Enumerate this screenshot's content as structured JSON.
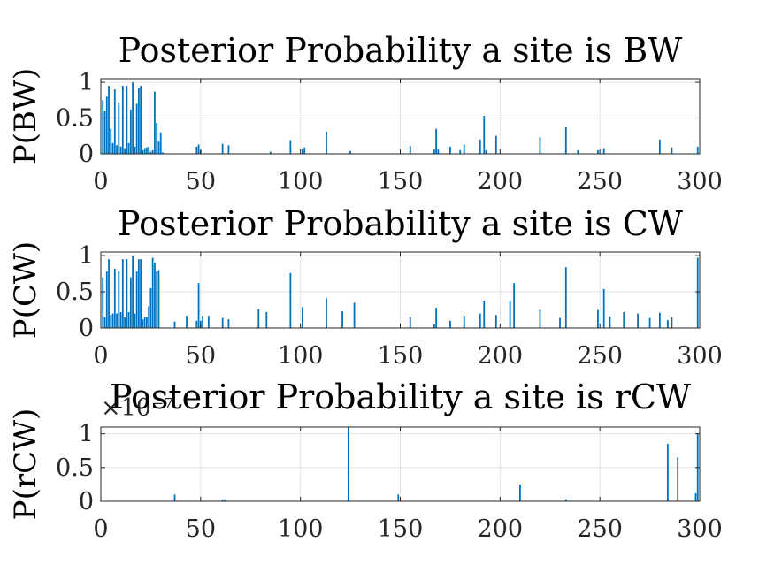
{
  "chart_data": [
    {
      "type": "bar",
      "title": "Posterior Probability a site is BW",
      "xlabel": "",
      "ylabel": "P(BW)",
      "xlim": [
        0,
        300
      ],
      "ylim": [
        0,
        1.05
      ],
      "xticks": [
        0,
        50,
        100,
        150,
        200,
        250,
        300
      ],
      "yticks": [
        0,
        0.5,
        1
      ],
      "ytick_labels": [
        "0",
        "0.5",
        "1"
      ],
      "y_multiplier": "",
      "grid": true,
      "bar_color": "#0072BD",
      "points": [
        [
          1,
          0.75
        ],
        [
          2,
          0.6
        ],
        [
          3,
          0.8
        ],
        [
          4,
          0.95
        ],
        [
          5,
          0.35
        ],
        [
          6,
          0.15
        ],
        [
          7,
          0.9
        ],
        [
          8,
          0.12
        ],
        [
          9,
          0.72
        ],
        [
          10,
          0.1
        ],
        [
          11,
          0.95
        ],
        [
          12,
          0.08
        ],
        [
          13,
          0.95
        ],
        [
          14,
          0.15
        ],
        [
          15,
          0.62
        ],
        [
          16,
          1.0
        ],
        [
          17,
          0.1
        ],
        [
          18,
          0.7
        ],
        [
          19,
          0.92
        ],
        [
          20,
          0.95
        ],
        [
          21,
          0.05
        ],
        [
          22,
          0.08
        ],
        [
          23,
          0.09
        ],
        [
          24,
          0.1
        ],
        [
          25,
          0.03
        ],
        [
          26,
          0.05
        ],
        [
          27,
          0.87
        ],
        [
          28,
          0.43
        ],
        [
          29,
          0.17
        ],
        [
          30,
          0.3
        ],
        [
          31,
          0.02
        ],
        [
          48,
          0.1
        ],
        [
          49,
          0.13
        ],
        [
          50,
          0.05
        ],
        [
          61,
          0.14
        ],
        [
          64,
          0.12
        ],
        [
          85,
          0.03
        ],
        [
          95,
          0.19
        ],
        [
          101,
          0.07
        ],
        [
          102,
          0.09
        ],
        [
          113,
          0.31
        ],
        [
          125,
          0.04
        ],
        [
          155,
          0.11
        ],
        [
          167,
          0.06
        ],
        [
          168,
          0.35
        ],
        [
          169,
          0.06
        ],
        [
          175,
          0.1
        ],
        [
          180,
          0.05
        ],
        [
          182,
          0.13
        ],
        [
          190,
          0.2
        ],
        [
          192,
          0.53
        ],
        [
          193,
          0.05
        ],
        [
          198,
          0.25
        ],
        [
          220,
          0.23
        ],
        [
          233,
          0.37
        ],
        [
          239,
          0.05
        ],
        [
          249,
          0.05
        ],
        [
          252,
          0.08
        ],
        [
          280,
          0.2
        ],
        [
          286,
          0.09
        ],
        [
          299,
          0.1
        ]
      ]
    },
    {
      "type": "bar",
      "title": "Posterior Probability a site is CW",
      "xlabel": "",
      "ylabel": "P(CW)",
      "xlim": [
        0,
        300
      ],
      "ylim": [
        0,
        1.05
      ],
      "xticks": [
        0,
        50,
        100,
        150,
        200,
        250,
        300
      ],
      "yticks": [
        0,
        0.5,
        1
      ],
      "ytick_labels": [
        "0",
        "0.5",
        "1"
      ],
      "y_multiplier": "",
      "grid": true,
      "bar_color": "#0072BD",
      "points": [
        [
          1,
          0.7
        ],
        [
          2,
          0.15
        ],
        [
          3,
          0.78
        ],
        [
          4,
          0.95
        ],
        [
          5,
          0.18
        ],
        [
          6,
          0.2
        ],
        [
          7,
          0.82
        ],
        [
          8,
          0.2
        ],
        [
          9,
          0.78
        ],
        [
          10,
          0.22
        ],
        [
          11,
          0.95
        ],
        [
          12,
          0.15
        ],
        [
          13,
          0.95
        ],
        [
          14,
          0.22
        ],
        [
          15,
          0.7
        ],
        [
          16,
          1.0
        ],
        [
          17,
          0.2
        ],
        [
          18,
          0.78
        ],
        [
          19,
          0.95
        ],
        [
          20,
          0.95
        ],
        [
          21,
          0.12
        ],
        [
          22,
          0.15
        ],
        [
          23,
          0.15
        ],
        [
          24,
          0.3
        ],
        [
          25,
          0.55
        ],
        [
          26,
          0.97
        ],
        [
          27,
          0.9
        ],
        [
          28,
          0.78
        ],
        [
          29,
          0.8
        ],
        [
          37,
          0.09
        ],
        [
          43,
          0.17
        ],
        [
          48,
          0.1
        ],
        [
          49,
          0.62
        ],
        [
          50,
          0.1
        ],
        [
          51,
          0.17
        ],
        [
          54,
          0.17
        ],
        [
          61,
          0.14
        ],
        [
          64,
          0.12
        ],
        [
          79,
          0.26
        ],
        [
          83,
          0.22
        ],
        [
          95,
          0.76
        ],
        [
          101,
          0.29
        ],
        [
          113,
          0.41
        ],
        [
          121,
          0.23
        ],
        [
          127,
          0.35
        ],
        [
          155,
          0.15
        ],
        [
          167,
          0.05
        ],
        [
          168,
          0.28
        ],
        [
          175,
          0.1
        ],
        [
          182,
          0.17
        ],
        [
          190,
          0.2
        ],
        [
          192,
          0.38
        ],
        [
          198,
          0.18
        ],
        [
          205,
          0.37
        ],
        [
          207,
          0.62
        ],
        [
          220,
          0.25
        ],
        [
          230,
          0.14
        ],
        [
          233,
          0.84
        ],
        [
          249,
          0.25
        ],
        [
          252,
          0.54
        ],
        [
          255,
          0.16
        ],
        [
          262,
          0.22
        ],
        [
          269,
          0.2
        ],
        [
          275,
          0.14
        ],
        [
          280,
          0.21
        ],
        [
          284,
          0.11
        ],
        [
          286,
          0.15
        ],
        [
          299,
          0.97
        ]
      ]
    },
    {
      "type": "bar",
      "title": "Posterior Probability a site is rCW",
      "xlabel": "",
      "ylabel": "P(rCW)",
      "xlim": [
        0,
        300
      ],
      "ylim": [
        0,
        1.1
      ],
      "xticks": [
        0,
        50,
        100,
        150,
        200,
        250,
        300
      ],
      "yticks": [
        0,
        0.5,
        1
      ],
      "ytick_labels": [
        "0",
        "0.5",
        "1"
      ],
      "y_multiplier": "×10⁻⁷",
      "grid": true,
      "bar_color": "#0072BD",
      "points": [
        [
          37,
          0.1
        ],
        [
          61,
          0.02
        ],
        [
          62,
          0.02
        ],
        [
          124,
          1.1
        ],
        [
          149,
          0.1
        ],
        [
          210,
          0.25
        ],
        [
          233,
          0.03
        ],
        [
          284,
          0.85
        ],
        [
          289,
          0.65
        ],
        [
          298,
          0.12
        ],
        [
          299,
          1.0
        ]
      ]
    }
  ]
}
